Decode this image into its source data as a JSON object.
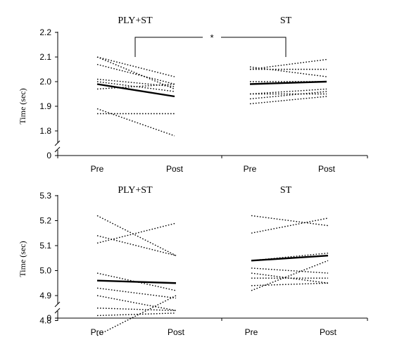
{
  "chart_data": [
    {
      "type": "line",
      "ylabel": "Time (sec)",
      "yticks": [
        "1.8",
        "1.9",
        "2.0",
        "2.1",
        "2.2"
      ],
      "y_zero_label": "0",
      "ylim": [
        1.75,
        2.2
      ],
      "x_labels": [
        "Pre",
        "Post",
        "Pre",
        "Post"
      ],
      "significance": "*",
      "groups": [
        {
          "title": "PLY+ST",
          "lines": [
            [
              2.1,
              1.97
            ],
            [
              2.1,
              2.02
            ],
            [
              2.07,
              1.99
            ],
            [
              2.01,
              1.98
            ],
            [
              2.0,
              1.96
            ],
            [
              1.97,
              1.99
            ],
            [
              1.87,
              1.87
            ],
            [
              1.89,
              1.78
            ]
          ],
          "mean": [
            1.99,
            1.94
          ]
        },
        {
          "title": "ST",
          "lines": [
            [
              2.06,
              2.02
            ],
            [
              2.05,
              2.09
            ],
            [
              2.05,
              2.05
            ],
            [
              2.0,
              2.0
            ],
            [
              1.95,
              1.97
            ],
            [
              1.95,
              1.95
            ],
            [
              1.93,
              1.96
            ],
            [
              1.91,
              1.94
            ]
          ],
          "mean": [
            1.99,
            2.0
          ]
        }
      ]
    },
    {
      "type": "line",
      "ylabel": "Time (sec)",
      "yticks": [
        "4.8",
        "4.9",
        "5.0",
        "5.1",
        "5.2",
        "5.3"
      ],
      "y_zero_label": "0",
      "ylim": [
        4.75,
        5.3
      ],
      "x_labels": [
        "Pre",
        "Post",
        "Pre",
        "Post"
      ],
      "groups": [
        {
          "title": "PLY+ST",
          "lines": [
            [
              5.22,
              5.06
            ],
            [
              5.14,
              5.06
            ],
            [
              5.11,
              5.19
            ],
            [
              4.99,
              4.92
            ],
            [
              4.93,
              4.89
            ],
            [
              4.9,
              4.84
            ],
            [
              4.85,
              4.84
            ],
            [
              4.82,
              4.83
            ],
            [
              4.74,
              4.9
            ]
          ],
          "mean": [
            4.96,
            4.95
          ]
        },
        {
          "title": "ST",
          "lines": [
            [
              5.22,
              5.18
            ],
            [
              5.15,
              5.21
            ],
            [
              5.04,
              5.07
            ],
            [
              5.01,
              4.99
            ],
            [
              4.99,
              4.95
            ],
            [
              4.94,
              4.95
            ],
            [
              4.92,
              5.04
            ],
            [
              4.97,
              4.97
            ]
          ],
          "mean": [
            5.04,
            5.06
          ]
        }
      ]
    }
  ]
}
